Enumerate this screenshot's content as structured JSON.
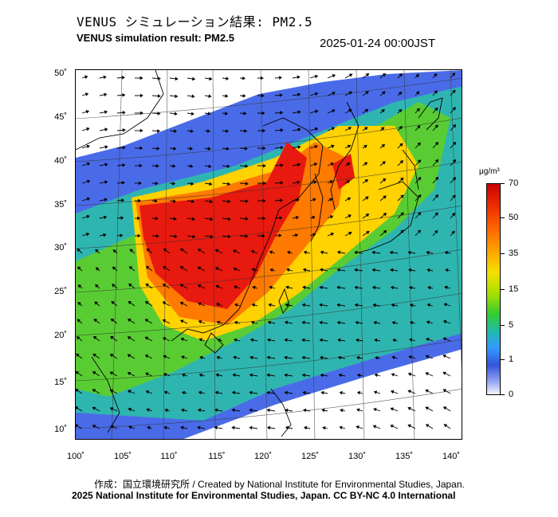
{
  "header": {
    "title_jp": "VENUS シミュレーション結果: PM2.5",
    "title_en": "VENUS simulation result: PM2.5",
    "timestamp": "2025-01-24 00:00JST"
  },
  "map": {
    "latitude_labels": [
      "50˚",
      "45˚",
      "40˚",
      "35˚",
      "30˚",
      "25˚",
      "20˚",
      "15˚",
      "10˚"
    ],
    "longitude_labels": [
      "100˚",
      "105˚",
      "110˚",
      "115˚",
      "120˚",
      "125˚",
      "130˚",
      "135˚",
      "140˚"
    ],
    "lat_range": [
      9,
      51
    ],
    "lon_range": [
      100,
      141
    ],
    "overlay": "wind-vectors",
    "colors": {
      "very_high": "#e8190e",
      "high": "#ff7a00",
      "medium": "#ffd500",
      "moderate": "#55cc33",
      "low": "#22b8a8",
      "very_low": "#3366ee",
      "minimal": "#8fa8f0",
      "coastline": "#000000"
    }
  },
  "colorbar": {
    "unit": "μg/m³",
    "ticks": [
      "70",
      "50",
      "35",
      "15",
      "5",
      "1",
      "0"
    ]
  },
  "footer": {
    "credit_jp": "作成：国立環境研究所 / Created by National Institute for Environmental Studies, Japan.",
    "credit_en": "2025 National Institute for Environmental Studies, Japan. CC BY-NC 4.0 International"
  }
}
